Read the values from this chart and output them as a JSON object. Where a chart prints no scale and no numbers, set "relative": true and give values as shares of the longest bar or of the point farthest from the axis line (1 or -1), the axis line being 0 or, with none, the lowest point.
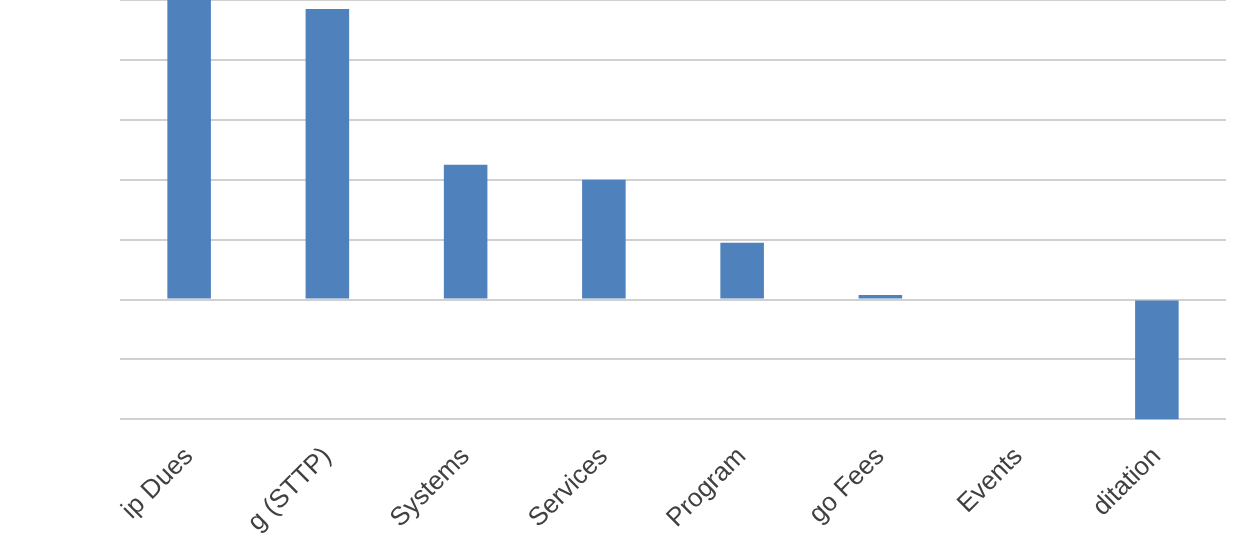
{
  "chart_data": {
    "type": "bar",
    "relative": true,
    "grid": "y",
    "categories": [
      "ip Dues",
      "g (STTP)",
      "Systems",
      "Services",
      "Program",
      "go Fees",
      "Events",
      "ditation"
    ],
    "values": [
      1,
      0.97,
      0.45,
      0.4,
      0.19,
      0.015,
      0,
      -0.4
    ],
    "color": "#4f81bd"
  }
}
